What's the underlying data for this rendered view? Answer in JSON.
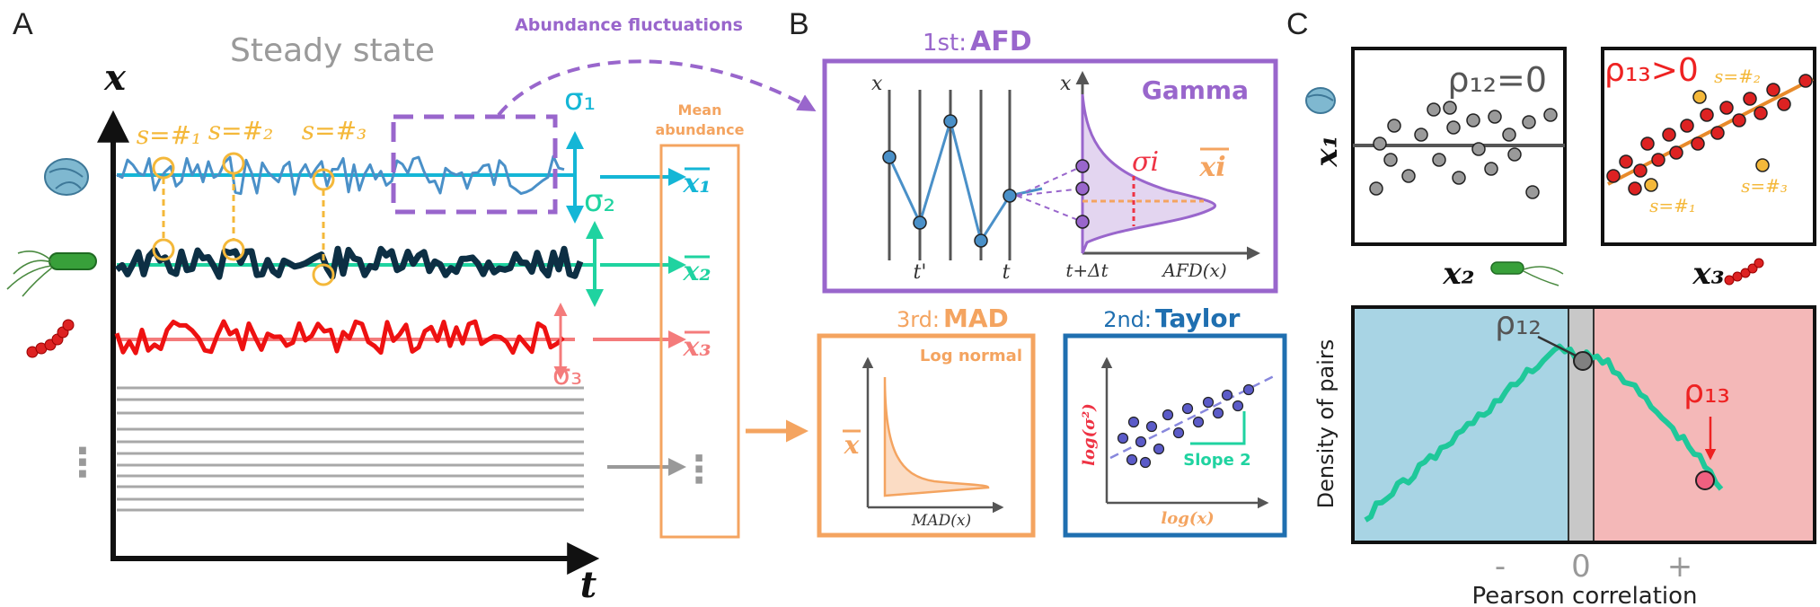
{
  "panels": {
    "a": "A",
    "b": "B",
    "c": "C"
  },
  "panel_a": {
    "title": "Steady state",
    "fluct_label": "Abundance fluctuations",
    "mean_label_1": "Mean",
    "mean_label_2": "abundance",
    "y_axis": "x",
    "x_axis": "t",
    "samples": [
      "s=#₁",
      "s=#₂",
      "s=#₃"
    ],
    "sigmas": [
      "σ₁",
      "σ₂",
      "σ₃"
    ],
    "means": [
      "x₁",
      "x₂",
      "x₃"
    ],
    "ellipsis": "⋮",
    "colors": {
      "s1": "#4a90c8",
      "s2": "#0d2f44",
      "s3": "#ee1111",
      "sample": "#f4b83a",
      "mean1": "#14b6d6",
      "mean2": "#1fd3a0",
      "mean3": "#f47b7b",
      "purple": "#9966cc",
      "orange": "#f4a460"
    }
  },
  "panel_b": {
    "afd_title_prefix": "1st:",
    "afd_title": "AFD",
    "gamma": "Gamma",
    "x_label": "x",
    "t_prime": "t'",
    "t": "t",
    "t_dt": "t+Δt",
    "afd_axis": "AFD(x)",
    "sigma_i": "σi",
    "xbar_i": "xi",
    "mad_prefix": "3rd:",
    "mad_title": "MAD",
    "log_normal": "Log normal",
    "mad_yaxis": "x",
    "mad_xaxis": "MAD(x)",
    "taylor_prefix": "2nd:",
    "taylor_title": "Taylor",
    "taylor_y": "log(σ²)",
    "taylor_x": "log(x)",
    "slope": "Slope 2"
  },
  "panel_c": {
    "rho12_eq": "ρ₁₂=0",
    "rho13_gt": "ρ₁₃>0",
    "x1": "x₁",
    "x2": "x₂",
    "x3": "x₃",
    "samples": [
      "s=#₂",
      "s=#₁",
      "s=#₃"
    ],
    "density_label": "Density of pairs",
    "pearson": "Pearson correlation",
    "ticks": [
      "-",
      "0",
      "+"
    ],
    "rho12": "ρ₁₂",
    "rho13": "ρ₁₃"
  }
}
